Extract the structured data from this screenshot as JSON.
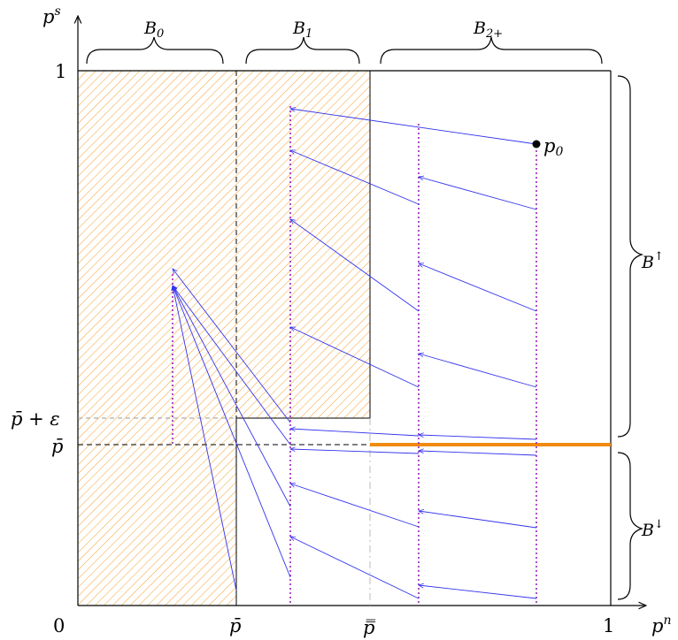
{
  "axes": {
    "x_label": "p",
    "x_label_sup": "n",
    "y_label": "p",
    "y_label_sup": "s",
    "origin": "0",
    "x_one": "1",
    "y_one": "1",
    "x_tick_pbar": "p̄",
    "x_tick_pbarbar": "p̿",
    "y_tick_pbar": "p̄",
    "y_tick_pbar_eps": "p̄ + ε"
  },
  "brackets": {
    "b0": "B",
    "b0_sub": "0",
    "b1": "B",
    "b1_sub": "1",
    "b2": "B",
    "b2_sub": "2+",
    "b_up": "B",
    "b_up_sup": "↑",
    "b_down": "B",
    "b_down_sup": "↓"
  },
  "point": {
    "label": "p",
    "label_sub": "0"
  },
  "colors": {
    "arrow": "#3333ee",
    "dotted": "#9922bb",
    "hatch": "#f4a53c",
    "highlight": "#f08a10",
    "frame": "#000000",
    "guide": "#bbbbbb"
  }
}
